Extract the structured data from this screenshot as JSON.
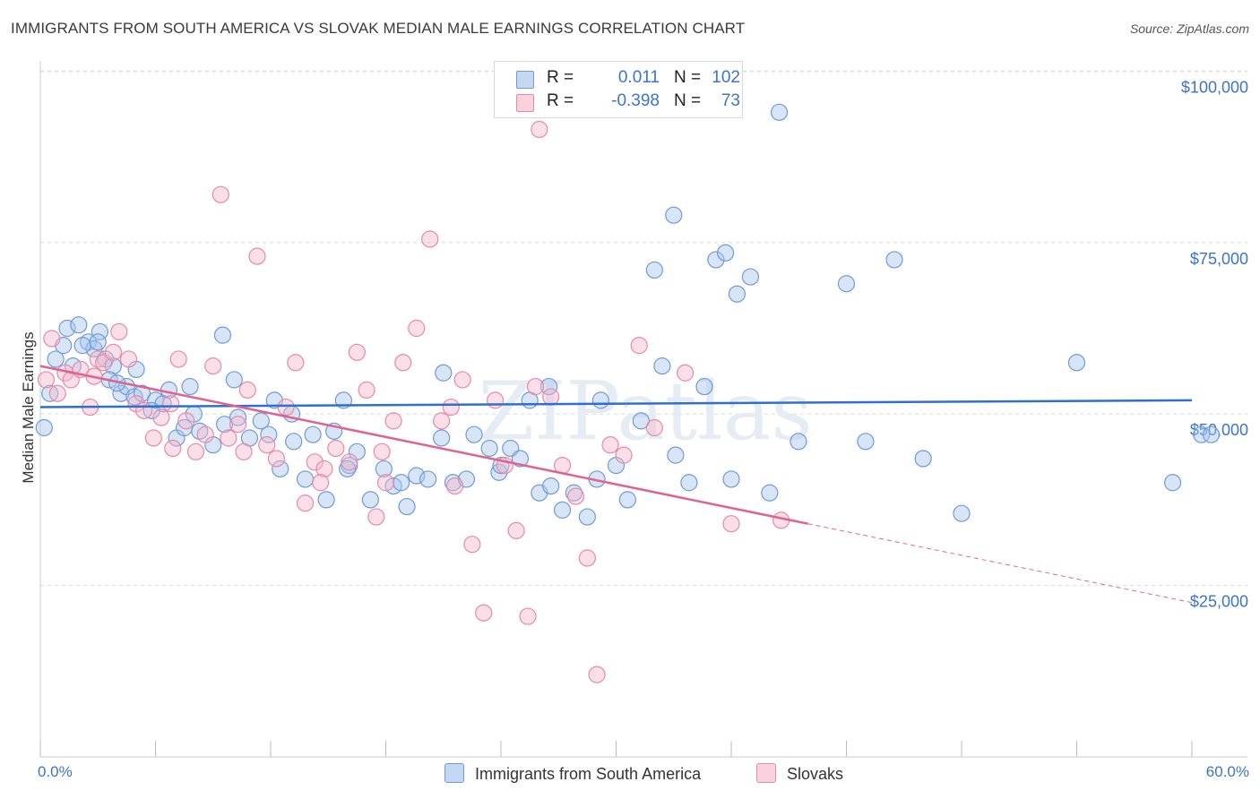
{
  "title": "IMMIGRANTS FROM SOUTH AMERICA VS SLOVAK MEDIAN MALE EARNINGS CORRELATION CHART",
  "source": "Source: ZipAtlas.com",
  "colors": {
    "blue_fill": "#a9c6ee",
    "blue_stroke": "#6f9ad6",
    "blue_line": "#2f6fd0",
    "pink_fill": "#f5b9cb",
    "pink_stroke": "#e58aa8",
    "pink_line": "#e0628f",
    "axis_text": "#3b74c9"
  },
  "legend": {
    "rows": [
      {
        "r_label": "R =",
        "r_value": "0.011",
        "n_label": "N =",
        "n_value": "102"
      },
      {
        "r_label": "R =",
        "r_value": "-0.398",
        "n_label": "N =",
        "n_value": "73"
      }
    ]
  },
  "chart_data": {
    "type": "scatter",
    "title": "IMMIGRANTS FROM SOUTH AMERICA VS SLOVAK MEDIAN MALE EARNINGS CORRELATION CHART",
    "xlabel": "",
    "ylabel": "Median Male Earnings",
    "xlim": [
      0,
      60
    ],
    "ylim": [
      0,
      105000
    ],
    "x_tick_labels": [
      "0.0%",
      "60.0%"
    ],
    "y_ticks": [
      25000,
      50000,
      75000,
      100000
    ],
    "y_tick_labels": [
      "$25,000",
      "$50,000",
      "$75,000",
      "$100,000"
    ],
    "grid": true,
    "legend_position": "top-center",
    "watermark": "ZIPatlas",
    "series": [
      {
        "name": "Immigrants from South America",
        "color": "blue",
        "trend": {
          "x": [
            0,
            60
          ],
          "y": [
            51000,
            52000
          ],
          "dashed_from": null
        },
        "points": [
          [
            0.2,
            48000
          ],
          [
            0.5,
            53000
          ],
          [
            0.8,
            58000
          ],
          [
            1.2,
            60000
          ],
          [
            1.4,
            62500
          ],
          [
            1.7,
            57000
          ],
          [
            2.0,
            63000
          ],
          [
            2.5,
            60500
          ],
          [
            2.8,
            59500
          ],
          [
            3.1,
            62000
          ],
          [
            3.4,
            58000
          ],
          [
            3.8,
            57000
          ],
          [
            3.6,
            55000
          ],
          [
            4.2,
            53000
          ],
          [
            4.5,
            54000
          ],
          [
            4.9,
            52500
          ],
          [
            5.3,
            53000
          ],
          [
            6.0,
            52000
          ],
          [
            6.4,
            51500
          ],
          [
            5.8,
            50500
          ],
          [
            6.7,
            53500
          ],
          [
            7.1,
            46500
          ],
          [
            7.5,
            48000
          ],
          [
            8.0,
            50000
          ],
          [
            8.3,
            47500
          ],
          [
            9.0,
            45500
          ],
          [
            9.6,
            48500
          ],
          [
            10.1,
            55000
          ],
          [
            10.3,
            49500
          ],
          [
            10.9,
            46500
          ],
          [
            11.5,
            49000
          ],
          [
            11.9,
            47000
          ],
          [
            12.5,
            42000
          ],
          [
            13.2,
            46000
          ],
          [
            13.8,
            40500
          ],
          [
            14.2,
            47000
          ],
          [
            14.9,
            37500
          ],
          [
            15.3,
            47500
          ],
          [
            16.1,
            42500
          ],
          [
            16.5,
            44500
          ],
          [
            17.2,
            37500
          ],
          [
            17.9,
            42000
          ],
          [
            18.4,
            39500
          ],
          [
            19.1,
            36500
          ],
          [
            19.6,
            41000
          ],
          [
            20.2,
            40500
          ],
          [
            20.9,
            46500
          ],
          [
            21.5,
            40000
          ],
          [
            22.2,
            40500
          ],
          [
            22.6,
            47000
          ],
          [
            23.4,
            45000
          ],
          [
            23.9,
            41500
          ],
          [
            24.5,
            45000
          ],
          [
            25.0,
            43500
          ],
          [
            25.5,
            52000
          ],
          [
            26.0,
            38500
          ],
          [
            26.6,
            39500
          ],
          [
            27.2,
            36000
          ],
          [
            27.8,
            38500
          ],
          [
            28.5,
            35000
          ],
          [
            29.2,
            52000
          ],
          [
            30.0,
            42500
          ],
          [
            30.6,
            37500
          ],
          [
            31.3,
            49000
          ],
          [
            32.4,
            57000
          ],
          [
            33.1,
            44000
          ],
          [
            33.8,
            40000
          ],
          [
            34.6,
            54000
          ],
          [
            35.2,
            72500
          ],
          [
            35.7,
            73500
          ],
          [
            36.3,
            67500
          ],
          [
            37.0,
            70000
          ],
          [
            38.0,
            38500
          ],
          [
            39.5,
            46000
          ],
          [
            42.0,
            69000
          ],
          [
            43.0,
            46000
          ],
          [
            44.5,
            72500
          ],
          [
            46.0,
            43500
          ],
          [
            54.0,
            57500
          ],
          [
            59.0,
            40000
          ],
          [
            60.5,
            47000
          ],
          [
            61.0,
            47000
          ],
          [
            33.0,
            79000
          ],
          [
            36.0,
            40500
          ],
          [
            32.0,
            71000
          ],
          [
            48.0,
            35500
          ],
          [
            38.5,
            94000
          ],
          [
            9.5,
            61500
          ],
          [
            4.0,
            54500
          ],
          [
            2.2,
            60000
          ],
          [
            26.5,
            54000
          ],
          [
            7.8,
            54000
          ],
          [
            12.2,
            52000
          ],
          [
            15.8,
            52000
          ],
          [
            18.8,
            40000
          ],
          [
            13.1,
            50000
          ],
          [
            21.0,
            56000
          ],
          [
            5.0,
            56500
          ],
          [
            3.0,
            60500
          ],
          [
            16.0,
            42000
          ],
          [
            24.0,
            42500
          ],
          [
            29.0,
            40500
          ]
        ]
      },
      {
        "name": "Slovaks",
        "color": "pink",
        "trend": {
          "x": [
            0,
            40
          ],
          "y": [
            57000,
            34000
          ],
          "dashed_to": [
            60,
            22500
          ]
        },
        "points": [
          [
            0.3,
            55000
          ],
          [
            0.6,
            61000
          ],
          [
            0.9,
            53000
          ],
          [
            1.3,
            56000
          ],
          [
            1.6,
            55000
          ],
          [
            2.1,
            56500
          ],
          [
            2.6,
            51000
          ],
          [
            3.0,
            58000
          ],
          [
            3.3,
            57500
          ],
          [
            3.8,
            59000
          ],
          [
            4.1,
            62000
          ],
          [
            4.6,
            58000
          ],
          [
            5.0,
            51500
          ],
          [
            5.4,
            50500
          ],
          [
            5.9,
            46500
          ],
          [
            6.3,
            49500
          ],
          [
            6.8,
            51500
          ],
          [
            7.2,
            58000
          ],
          [
            7.6,
            49000
          ],
          [
            8.1,
            44500
          ],
          [
            8.6,
            47000
          ],
          [
            9.0,
            57000
          ],
          [
            9.4,
            82000
          ],
          [
            9.8,
            46500
          ],
          [
            10.3,
            48500
          ],
          [
            10.8,
            53500
          ],
          [
            11.3,
            73000
          ],
          [
            11.8,
            45500
          ],
          [
            12.3,
            43500
          ],
          [
            12.8,
            51000
          ],
          [
            13.3,
            57500
          ],
          [
            13.8,
            37000
          ],
          [
            14.3,
            43000
          ],
          [
            14.8,
            42000
          ],
          [
            15.4,
            45000
          ],
          [
            16.1,
            43000
          ],
          [
            16.5,
            59000
          ],
          [
            17.0,
            53500
          ],
          [
            17.5,
            35000
          ],
          [
            18.0,
            40000
          ],
          [
            18.4,
            49000
          ],
          [
            18.9,
            57500
          ],
          [
            19.6,
            62500
          ],
          [
            20.3,
            75500
          ],
          [
            20.9,
            49000
          ],
          [
            21.4,
            51000
          ],
          [
            22.0,
            55000
          ],
          [
            22.5,
            31000
          ],
          [
            23.1,
            21000
          ],
          [
            23.7,
            52000
          ],
          [
            24.2,
            42500
          ],
          [
            24.8,
            33000
          ],
          [
            25.4,
            20500
          ],
          [
            26.0,
            91500
          ],
          [
            26.6,
            52500
          ],
          [
            27.2,
            42500
          ],
          [
            27.9,
            38000
          ],
          [
            28.5,
            29000
          ],
          [
            29.0,
            12000
          ],
          [
            29.7,
            45500
          ],
          [
            30.4,
            44000
          ],
          [
            31.2,
            60000
          ],
          [
            33.6,
            56000
          ],
          [
            36.0,
            34000
          ],
          [
            38.6,
            34500
          ],
          [
            2.8,
            55500
          ],
          [
            6.9,
            45000
          ],
          [
            10.6,
            44500
          ],
          [
            14.6,
            40000
          ],
          [
            17.8,
            44500
          ],
          [
            21.6,
            39500
          ],
          [
            25.8,
            54000
          ],
          [
            32.0,
            48000
          ]
        ]
      }
    ]
  },
  "bottom_legend": {
    "items": [
      {
        "label": "Immigrants from South America"
      },
      {
        "label": "Slovaks"
      }
    ]
  }
}
